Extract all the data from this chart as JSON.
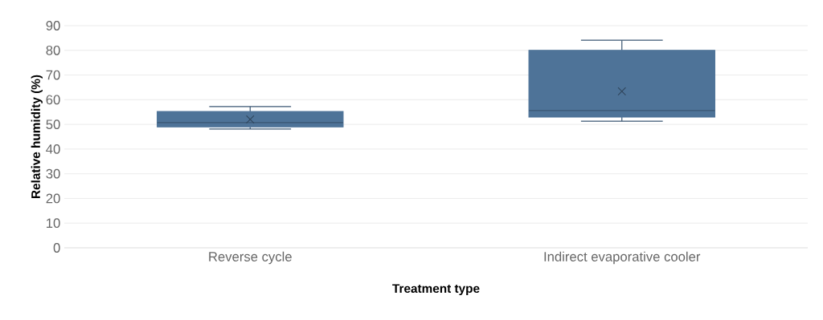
{
  "chart_data": {
    "type": "box",
    "xlabel": "Treatment type",
    "ylabel": "Relative humidity (%)",
    "categories": [
      "Reverse cycle",
      "Indirect evaporative cooler"
    ],
    "boxes": [
      {
        "low": 48.1,
        "q1": 49,
        "median": 50.7,
        "q3": 55.2,
        "high": 57.2,
        "mean": 52
      },
      {
        "low": 51.3,
        "q1": 53,
        "median": 55.6,
        "q3": 80,
        "high": 84.1,
        "mean": 63.4
      }
    ],
    "color": "#4e7398",
    "ylim": [
      0,
      90
    ],
    "yticks": [
      0,
      10,
      20,
      30,
      40,
      50,
      60,
      70,
      80,
      90
    ],
    "grid": "y",
    "marker": "cross"
  }
}
